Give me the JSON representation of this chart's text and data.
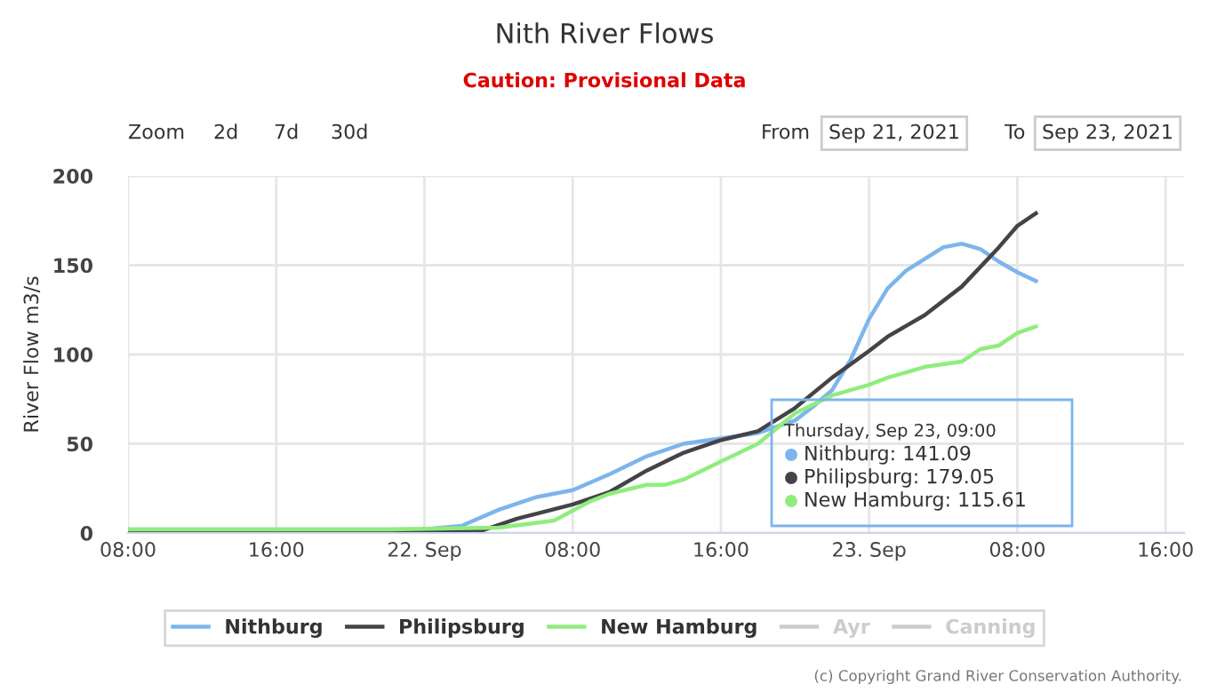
{
  "chart_data": {
    "type": "line",
    "title": "Nith River Flows",
    "subtitle": "Caution: Provisional Data",
    "ylabel": "River Flow m3/s",
    "xlim": [
      "2021-09-21T08:00",
      "2021-09-23T17:00"
    ],
    "xticks": [
      {
        "value": "2021-09-21T08:00",
        "label": "08:00"
      },
      {
        "value": "2021-09-21T16:00",
        "label": "16:00"
      },
      {
        "value": "2021-09-22T00:00",
        "label": "22. Sep"
      },
      {
        "value": "2021-09-22T08:00",
        "label": "08:00"
      },
      {
        "value": "2021-09-22T16:00",
        "label": "16:00"
      },
      {
        "value": "2021-09-23T00:00",
        "label": "23. Sep"
      },
      {
        "value": "2021-09-23T08:00",
        "label": "08:00"
      },
      {
        "value": "2021-09-23T16:00",
        "label": "16:00"
      }
    ],
    "ylim": [
      0,
      200
    ],
    "yticks": [
      0,
      50,
      100,
      150,
      200
    ],
    "grid": true,
    "legend": "bottom",
    "marker": "none",
    "line_style": "solid",
    "series": [
      {
        "name": "Nithburg",
        "color": "#7cb5ec",
        "x": [
          "2021-09-21T08:00",
          "2021-09-22T00:00",
          "2021-09-22T02:00",
          "2021-09-22T04:00",
          "2021-09-22T06:00",
          "2021-09-22T08:00",
          "2021-09-22T10:00",
          "2021-09-22T12:00",
          "2021-09-22T14:00",
          "2021-09-22T16:00",
          "2021-09-22T18:00",
          "2021-09-22T20:00",
          "2021-09-22T21:00",
          "2021-09-22T22:00",
          "2021-09-22T23:00",
          "2021-09-23T00:00",
          "2021-09-23T01:00",
          "2021-09-23T02:00",
          "2021-09-23T04:00",
          "2021-09-23T05:00",
          "2021-09-23T06:00",
          "2021-09-23T07:00",
          "2021-09-23T08:00",
          "2021-09-23T09:00"
        ],
        "values": [
          2,
          2,
          4,
          13,
          20,
          24,
          33,
          43,
          50,
          53,
          56,
          63,
          71,
          80,
          97,
          120,
          137,
          147,
          160,
          162,
          159,
          152,
          146,
          141.09
        ]
      },
      {
        "name": "Philipsburg",
        "color": "#434348",
        "x": [
          "2021-09-21T08:00",
          "2021-09-22T02:00",
          "2021-09-22T03:00",
          "2021-09-22T05:00",
          "2021-09-22T08:00",
          "2021-09-22T10:00",
          "2021-09-22T12:00",
          "2021-09-22T14:00",
          "2021-09-22T16:00",
          "2021-09-22T18:00",
          "2021-09-22T20:00",
          "2021-09-22T22:00",
          "2021-09-23T00:00",
          "2021-09-23T01:00",
          "2021-09-23T03:00",
          "2021-09-23T05:00",
          "2021-09-23T07:00",
          "2021-09-23T08:00",
          "2021-09-23T09:00"
        ],
        "values": [
          1,
          1,
          1,
          8,
          16,
          23,
          35,
          45,
          52,
          57,
          70,
          87,
          102,
          110,
          122,
          138,
          160,
          172,
          179.05
        ]
      },
      {
        "name": "New Hamburg",
        "color": "#90ed7d",
        "x": [
          "2021-09-21T08:00",
          "2021-09-21T22:00",
          "2021-09-22T04:00",
          "2021-09-22T07:00",
          "2021-09-22T09:00",
          "2021-09-22T10:00",
          "2021-09-22T12:00",
          "2021-09-22T13:00",
          "2021-09-22T14:00",
          "2021-09-22T16:00",
          "2021-09-22T18:00",
          "2021-09-22T20:00",
          "2021-09-22T22:00",
          "2021-09-23T00:00",
          "2021-09-23T01:00",
          "2021-09-23T03:00",
          "2021-09-23T05:00",
          "2021-09-23T06:00",
          "2021-09-23T07:00",
          "2021-09-23T08:00",
          "2021-09-23T09:00"
        ],
        "values": [
          2,
          2,
          3,
          7,
          18,
          22,
          27,
          27,
          30,
          40,
          50,
          67,
          77,
          83,
          87,
          93,
          96,
          103,
          105,
          112,
          115.61
        ]
      },
      {
        "name": "Ayr",
        "color": "#cccccc"
      },
      {
        "name": "Canning",
        "color": "#cccccc"
      }
    ],
    "annotations": [
      "Zoom",
      "2d",
      "7d",
      "30d",
      "From",
      "Sep 21, 2021",
      "To",
      "Sep 23, 2021",
      "Thursday, Sep 23, 09:00",
      "Nithburg: 141.09",
      "Philipsburg: 179.05",
      "New Hamburg: 115.61",
      "(c) Copyright Grand River Conservation Authority."
    ]
  }
}
